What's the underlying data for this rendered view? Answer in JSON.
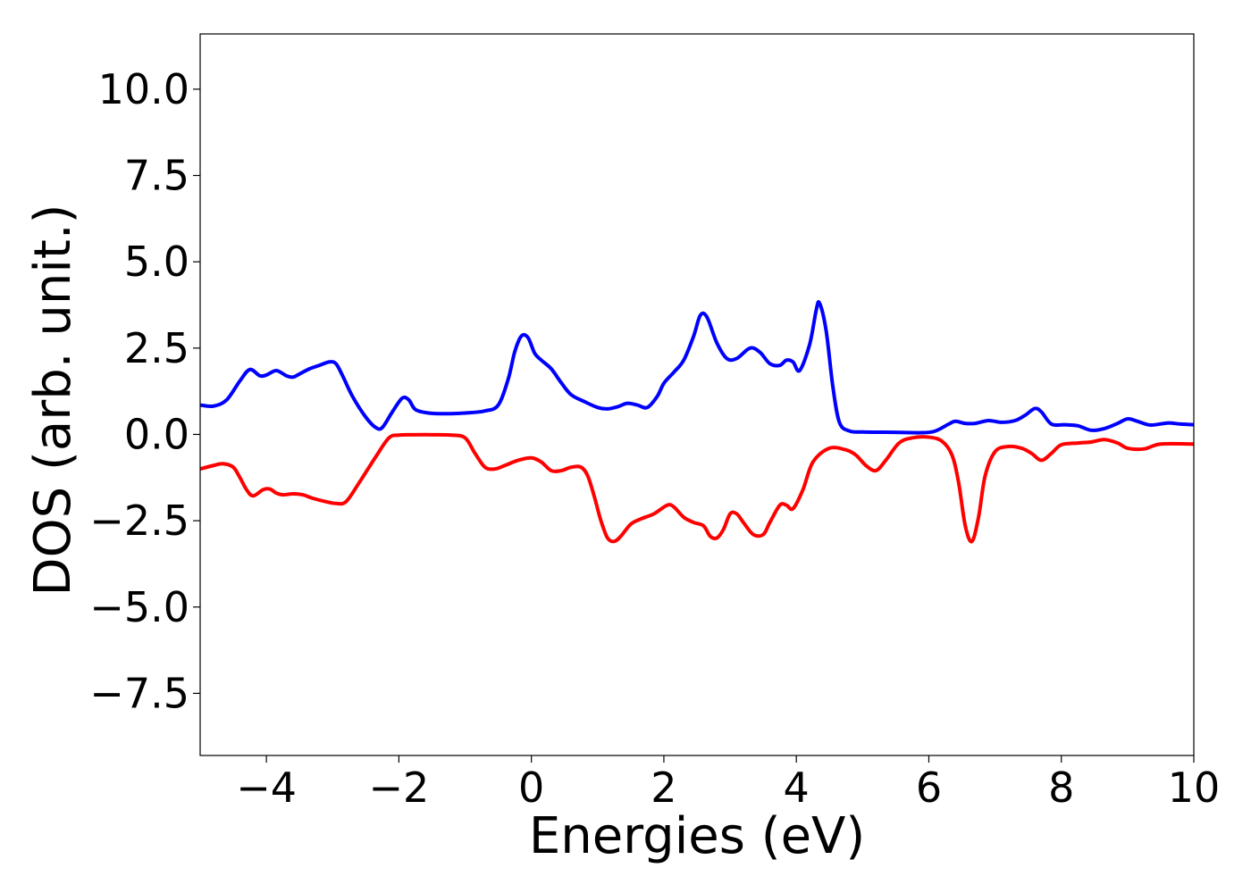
{
  "chart_data": {
    "type": "line",
    "title": "",
    "xlabel": "Energies (eV)",
    "ylabel": "DOS (arb. unit.)",
    "xlim": [
      -5,
      10
    ],
    "ylim": [
      -9.3,
      11.6
    ],
    "xticks": [
      -4,
      -2,
      0,
      2,
      4,
      6,
      8,
      10
    ],
    "xtick_labels": [
      "−4",
      "−2",
      "0",
      "2",
      "4",
      "6",
      "8",
      "10"
    ],
    "yticks": [
      10.0,
      7.5,
      5.0,
      2.5,
      0.0,
      -2.5,
      -5.0,
      -7.5
    ],
    "ytick_labels": [
      "10.0",
      "7.5",
      "5.0",
      "2.5",
      "0.0",
      "−2.5",
      "−5.0",
      "−7.5"
    ],
    "grid": false,
    "legend": "none",
    "series": [
      {
        "color": "#0000ff",
        "x": [
          -5.0,
          -4.8,
          -4.6,
          -4.4,
          -4.25,
          -4.1,
          -4.0,
          -3.85,
          -3.7,
          -3.6,
          -3.5,
          -3.35,
          -3.2,
          -3.05,
          -2.95,
          -2.85,
          -2.7,
          -2.5,
          -2.35,
          -2.25,
          -2.1,
          -1.95,
          -1.85,
          -1.75,
          -1.55,
          -1.3,
          -1.0,
          -0.7,
          -0.5,
          -0.35,
          -0.25,
          -0.15,
          -0.05,
          0.05,
          0.15,
          0.3,
          0.45,
          0.6,
          0.8,
          1.0,
          1.15,
          1.3,
          1.45,
          1.6,
          1.75,
          1.9,
          2.0,
          2.15,
          2.3,
          2.45,
          2.55,
          2.65,
          2.8,
          2.95,
          3.1,
          3.3,
          3.45,
          3.6,
          3.75,
          3.85,
          3.95,
          4.05,
          4.2,
          4.3,
          4.35,
          4.45,
          4.55,
          4.65,
          4.8,
          5.0,
          5.5,
          5.9,
          6.1,
          6.3,
          6.4,
          6.55,
          6.7,
          6.9,
          7.1,
          7.3,
          7.45,
          7.6,
          7.7,
          7.85,
          8.05,
          8.25,
          8.45,
          8.65,
          8.85,
          9.0,
          9.15,
          9.35,
          9.6,
          9.8,
          10.0
        ],
        "y": [
          0.85,
          0.82,
          1.0,
          1.55,
          1.88,
          1.7,
          1.72,
          1.85,
          1.7,
          1.66,
          1.75,
          1.9,
          2.0,
          2.1,
          2.05,
          1.7,
          1.1,
          0.5,
          0.2,
          0.2,
          0.65,
          1.05,
          1.0,
          0.72,
          0.62,
          0.6,
          0.62,
          0.68,
          0.85,
          1.6,
          2.4,
          2.85,
          2.8,
          2.35,
          2.15,
          1.9,
          1.5,
          1.15,
          0.95,
          0.78,
          0.74,
          0.8,
          0.9,
          0.85,
          0.78,
          1.1,
          1.48,
          1.8,
          2.15,
          2.85,
          3.45,
          3.4,
          2.65,
          2.2,
          2.2,
          2.5,
          2.38,
          2.05,
          2.0,
          2.15,
          2.1,
          1.85,
          2.6,
          3.6,
          3.8,
          3.0,
          1.4,
          0.35,
          0.1,
          0.07,
          0.06,
          0.05,
          0.1,
          0.3,
          0.38,
          0.32,
          0.32,
          0.4,
          0.35,
          0.4,
          0.55,
          0.75,
          0.65,
          0.3,
          0.28,
          0.25,
          0.12,
          0.17,
          0.32,
          0.45,
          0.38,
          0.27,
          0.33,
          0.3,
          0.28
        ]
      },
      {
        "color": "#ff0000",
        "x": [
          -5.0,
          -4.8,
          -4.65,
          -4.5,
          -4.4,
          -4.3,
          -4.2,
          -4.05,
          -3.95,
          -3.85,
          -3.75,
          -3.6,
          -3.45,
          -3.3,
          -3.1,
          -2.95,
          -2.8,
          -2.6,
          -2.35,
          -2.15,
          -2.0,
          -1.8,
          -1.5,
          -1.2,
          -1.0,
          -0.85,
          -0.7,
          -0.55,
          -0.4,
          -0.2,
          0.0,
          0.15,
          0.3,
          0.45,
          0.6,
          0.75,
          0.85,
          0.95,
          1.05,
          1.15,
          1.25,
          1.35,
          1.5,
          1.65,
          1.85,
          2.05,
          2.15,
          2.3,
          2.45,
          2.6,
          2.7,
          2.8,
          2.9,
          3.0,
          3.1,
          3.2,
          3.35,
          3.5,
          3.6,
          3.75,
          3.85,
          3.95,
          4.1,
          4.25,
          4.5,
          4.75,
          4.9,
          5.05,
          5.2,
          5.35,
          5.55,
          5.75,
          6.0,
          6.2,
          6.35,
          6.45,
          6.55,
          6.65,
          6.75,
          6.85,
          7.0,
          7.2,
          7.4,
          7.55,
          7.7,
          7.85,
          8.0,
          8.25,
          8.45,
          8.65,
          8.85,
          9.0,
          9.25,
          9.5,
          10.0
        ],
        "y": [
          -1.0,
          -0.9,
          -0.85,
          -0.95,
          -1.25,
          -1.6,
          -1.78,
          -1.6,
          -1.58,
          -1.7,
          -1.75,
          -1.72,
          -1.75,
          -1.85,
          -1.95,
          -2.0,
          -1.95,
          -1.4,
          -0.65,
          -0.1,
          -0.02,
          -0.01,
          -0.01,
          -0.02,
          -0.1,
          -0.55,
          -0.95,
          -1.0,
          -0.9,
          -0.75,
          -0.68,
          -0.8,
          -1.05,
          -1.05,
          -0.95,
          -0.95,
          -1.2,
          -1.8,
          -2.5,
          -3.0,
          -3.1,
          -2.95,
          -2.6,
          -2.45,
          -2.3,
          -2.05,
          -2.1,
          -2.4,
          -2.55,
          -2.65,
          -2.95,
          -3.0,
          -2.75,
          -2.3,
          -2.3,
          -2.55,
          -2.9,
          -2.9,
          -2.55,
          -2.05,
          -2.05,
          -2.15,
          -1.6,
          -0.8,
          -0.4,
          -0.45,
          -0.6,
          -0.9,
          -1.05,
          -0.75,
          -0.25,
          -0.1,
          -0.08,
          -0.2,
          -0.6,
          -1.4,
          -2.65,
          -3.1,
          -2.4,
          -1.2,
          -0.5,
          -0.35,
          -0.4,
          -0.55,
          -0.75,
          -0.55,
          -0.3,
          -0.25,
          -0.22,
          -0.15,
          -0.25,
          -0.4,
          -0.42,
          -0.28,
          -0.28
        ]
      }
    ]
  }
}
